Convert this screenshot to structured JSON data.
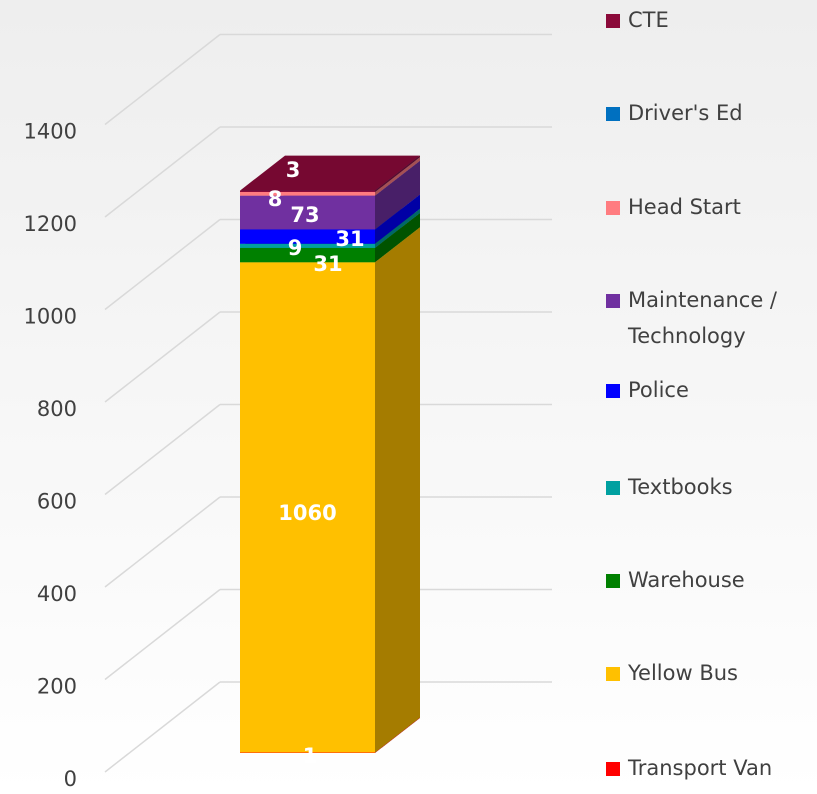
{
  "chart_data": {
    "type": "bar3d_stacked",
    "series": [
      {
        "name": "Transport Van",
        "color": "#ff0000",
        "values": [
          1
        ]
      },
      {
        "name": "Yellow Bus",
        "color": "#ffc000",
        "values": [
          1060
        ]
      },
      {
        "name": "Warehouse",
        "color": "#008000",
        "values": [
          31
        ]
      },
      {
        "name": "Textbooks",
        "color": "#00a0a0",
        "values": [
          9
        ]
      },
      {
        "name": "Police",
        "color": "#0000ff",
        "values": [
          31
        ]
      },
      {
        "name": "Maintenance / Technology",
        "color": "#7030a0",
        "values": [
          73
        ]
      },
      {
        "name": "Head Start",
        "color": "#ff7c80",
        "values": [
          8
        ]
      },
      {
        "name": "Driver's Ed",
        "color": "#0070c0",
        "values": [
          0
        ]
      },
      {
        "name": "CTE",
        "color": "#8b0a3a",
        "values": [
          3
        ]
      }
    ],
    "ylim": [
      0,
      1400
    ],
    "yticks": [
      0,
      200,
      400,
      600,
      800,
      1000,
      1200,
      1400
    ],
    "grid": true
  }
}
